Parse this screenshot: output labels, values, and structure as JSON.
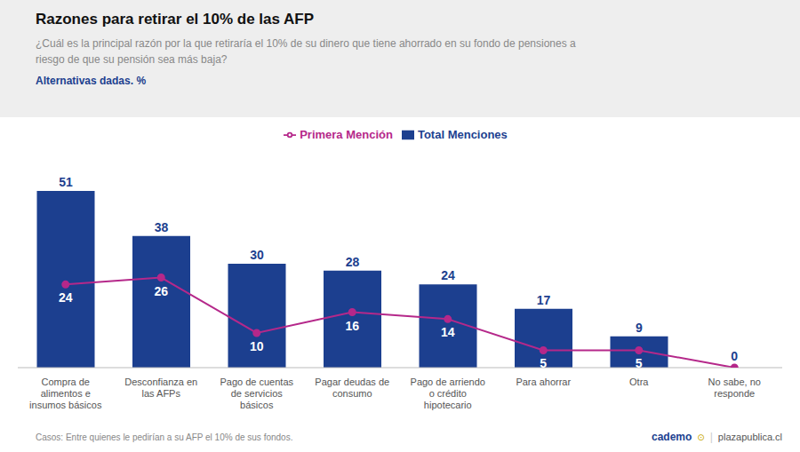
{
  "chart_data": {
    "type": "bar",
    "title": "Razones para retirar el 10% de las AFP",
    "subtitle": "¿Cuál es la principal razón por la que retiraría el 10% de su dinero que tiene ahorrado en su fondo de pensiones a\nriesgo de que su pensión sea más baja?",
    "annotations": [
      "Alternativas dadas. %",
      "Casos: Entre quienes le pedirían a su AFP el 10% de sus fondos.",
      "cademo",
      "⊙",
      "|",
      "plazapublica.cl"
    ],
    "categories": [
      "Compra de\nalimentos e\ninsumos básicos",
      "Desconfianza en\nlas AFPs",
      "Pago de cuentas\nde servicios\nbásicos",
      "Pagar deudas de\nconsumo",
      "Pago de arriendo\no crédito\nhipotecario",
      "Para ahorrar",
      "Otra",
      "No sabe, no\nresponde"
    ],
    "series": [
      {
        "name": "Total Menciones",
        "type": "bar",
        "color": "#1c3f8f",
        "values": [
          51,
          38,
          30,
          28,
          24,
          17,
          9,
          0
        ]
      },
      {
        "name": "Primera Mención",
        "type": "line",
        "color": "#b5288a",
        "marker": "circle",
        "values": [
          24,
          26,
          10,
          16,
          14,
          5,
          5,
          0
        ]
      }
    ],
    "ylim": [
      0,
      62
    ],
    "grid": false,
    "tick_labels": "x",
    "data_labels": true,
    "legend": "top"
  }
}
